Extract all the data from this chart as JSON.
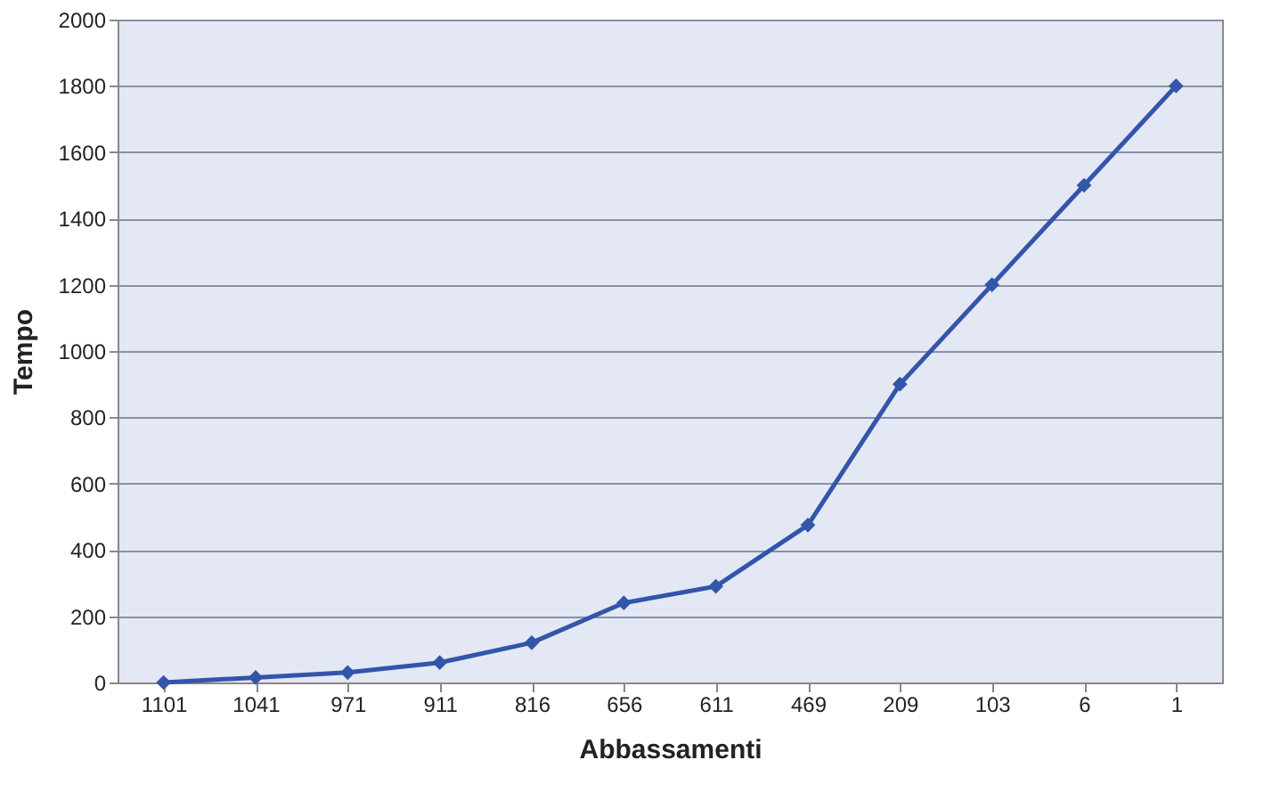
{
  "chart_data": {
    "type": "line",
    "xlabel": "Abbassamenti",
    "ylabel": "Tempo",
    "categories": [
      "1101",
      "1041",
      "971",
      "911",
      "816",
      "656",
      "611",
      "469",
      "209",
      "103",
      "6",
      "1"
    ],
    "series": [
      {
        "color": "#3355aa",
        "values": [
          0,
          15,
          30,
          60,
          120,
          240,
          290,
          475,
          900,
          1200,
          1500,
          1800
        ]
      }
    ],
    "ylim": [
      0,
      2000
    ],
    "yticks": [
      0,
      200,
      400,
      600,
      800,
      1000,
      1200,
      1400,
      1600,
      1800,
      2000
    ],
    "grid": "y",
    "legend": false,
    "marker": "diamond",
    "line_style": "solid"
  }
}
